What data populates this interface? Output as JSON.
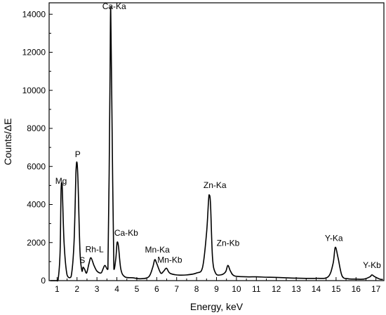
{
  "chart_data": {
    "type": "line",
    "title": "",
    "xlabel": "Energy, keV",
    "ylabel": "Counts/ΔE",
    "xlim": [
      0.6,
      17.4
    ],
    "ylim": [
      0,
      14600
    ],
    "x_ticks": [
      1,
      2,
      3,
      4,
      5,
      6,
      7,
      8,
      9,
      10,
      11,
      12,
      13,
      14,
      15,
      16,
      17
    ],
    "y_ticks": [
      0,
      2000,
      4000,
      6000,
      8000,
      10000,
      12000,
      14000
    ],
    "grid": false,
    "legend": "none",
    "line_color": "#000000",
    "series": [
      {
        "x": [
          0.65,
          0.95,
          1.05,
          1.15,
          1.2,
          1.25,
          1.35,
          1.5,
          1.7,
          1.85,
          1.95,
          2.0,
          2.05,
          2.15,
          2.25,
          2.3,
          2.38,
          2.48,
          2.6,
          2.7,
          2.85,
          3.0,
          3.2,
          3.3,
          3.4,
          3.55,
          3.65,
          3.69,
          3.75,
          3.85,
          3.95,
          4.01,
          4.08,
          4.2,
          4.4,
          4.8,
          5.2,
          5.6,
          5.8,
          5.9,
          6.0,
          6.2,
          6.35,
          6.49,
          6.65,
          7.0,
          7.5,
          8.0,
          8.3,
          8.5,
          8.6,
          8.64,
          8.7,
          8.8,
          8.95,
          9.2,
          9.45,
          9.57,
          9.7,
          9.9,
          10.5,
          11.0,
          11.5,
          12.0,
          13.0,
          14.0,
          14.6,
          14.85,
          14.96,
          15.1,
          15.3,
          15.6,
          16.0,
          16.4,
          16.7,
          16.8,
          16.95,
          17.2,
          17.35
        ],
        "y": [
          0,
          0,
          50,
          1500,
          4800,
          5100,
          2000,
          300,
          200,
          2000,
          5800,
          6200,
          5200,
          1500,
          500,
          700,
          600,
          400,
          900,
          1200,
          800,
          500,
          400,
          600,
          800,
          600,
          10000,
          14400,
          9000,
          600,
          1200,
          2000,
          1800,
          600,
          200,
          150,
          100,
          200,
          700,
          1100,
          900,
          400,
          500,
          650,
          400,
          300,
          300,
          400,
          700,
          2500,
          4200,
          4500,
          4000,
          1200,
          400,
          300,
          450,
          800,
          500,
          250,
          200,
          200,
          180,
          170,
          130,
          120,
          200,
          900,
          1750,
          1200,
          250,
          100,
          80,
          80,
          200,
          300,
          200,
          80,
          60
        ]
      }
    ],
    "annotations": [
      {
        "text": "Mg",
        "x": 1.2
      },
      {
        "text": "P",
        "x": 2.0
      },
      {
        "text": "S",
        "x": 2.3
      },
      {
        "text": "Rh-L",
        "x": 2.7
      },
      {
        "text": "Ca-Ka",
        "x": 3.69
      },
      {
        "text": "Ca-Kb",
        "x": 4.01
      },
      {
        "text": "Mn-Ka",
        "x": 5.9
      },
      {
        "text": "Mn-Kb",
        "x": 6.49
      },
      {
        "text": "Zn-Ka",
        "x": 8.64
      },
      {
        "text": "Zn-Kb",
        "x": 9.57
      },
      {
        "text": "Y-Ka",
        "x": 14.96
      },
      {
        "text": "Y-Kb",
        "x": 16.8
      }
    ]
  }
}
